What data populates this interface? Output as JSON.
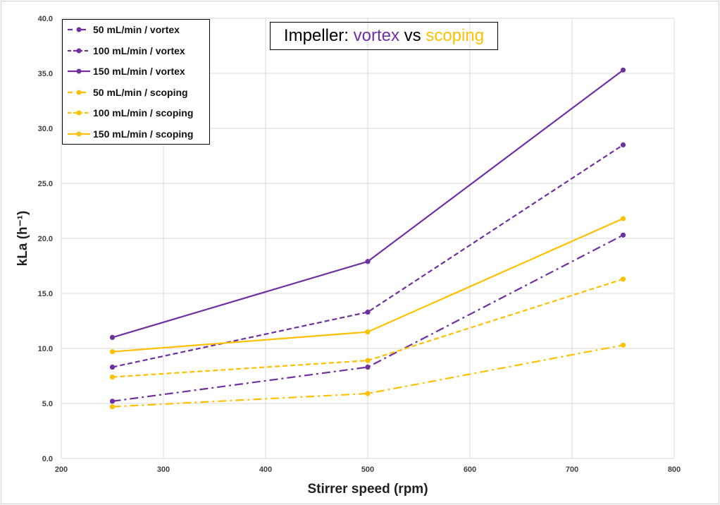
{
  "chart_data": {
    "type": "line",
    "title": {
      "prefix": "Impeller: ",
      "part1": "vortex",
      "middle": " vs ",
      "part2": "scoping"
    },
    "title_colors": {
      "part1": "#7030A0",
      "part2": "#FFC000"
    },
    "xlabel": "Stirrer speed (rpm)",
    "ylabel": "kLa (h⁻¹)",
    "xlim": [
      200,
      800
    ],
    "ylim": [
      0,
      40
    ],
    "xticks": [
      "200",
      "300",
      "400",
      "500",
      "600",
      "700",
      "800"
    ],
    "yticks": [
      "0.0",
      "5.0",
      "10.0",
      "15.0",
      "20.0",
      "25.0",
      "30.0",
      "35.0",
      "40.0"
    ],
    "grid": true,
    "legend_position": "top-left",
    "x": [
      250,
      500,
      750
    ],
    "series": [
      {
        "name": "50 mL/min / vortex",
        "values": [
          5.2,
          8.3,
          20.3
        ],
        "color": "#7030A0",
        "style": "dash-dot"
      },
      {
        "name": "100 mL/min / vortex",
        "values": [
          8.3,
          13.3,
          28.5
        ],
        "color": "#7030A0",
        "style": "dashed"
      },
      {
        "name": "150 mL/min / vortex",
        "values": [
          11.0,
          17.9,
          35.3
        ],
        "color": "#7030A0",
        "style": "solid"
      },
      {
        "name": "50 mL/min / scoping",
        "values": [
          4.7,
          5.9,
          10.3
        ],
        "color": "#FFC000",
        "style": "dash-dot"
      },
      {
        "name": "100 mL/min / scoping",
        "values": [
          7.4,
          8.9,
          16.3
        ],
        "color": "#FFC000",
        "style": "dashed"
      },
      {
        "name": "150 mL/min / scoping",
        "values": [
          9.7,
          11.5,
          21.8
        ],
        "color": "#FFC000",
        "style": "solid"
      }
    ]
  }
}
